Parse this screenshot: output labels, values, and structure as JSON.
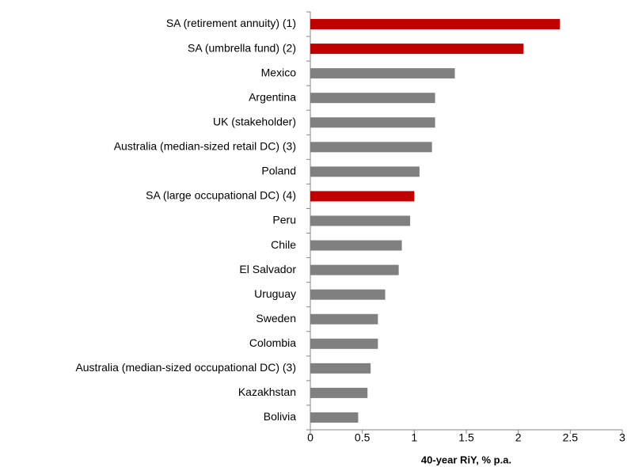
{
  "chart_data": {
    "type": "bar",
    "orientation": "horizontal",
    "categories": [
      "SA (retirement annuity) (1)",
      "SA (umbrella fund) (2)",
      "Mexico",
      "Argentina",
      "UK (stakeholder)",
      "Australia (median-sized retail DC) (3)",
      "Poland",
      "SA (large occupational DC) (4)",
      "Peru",
      "Chile",
      "El Salvador",
      "Uruguay",
      "Sweden",
      "Colombia",
      "Australia (median-sized occupational DC) (3)",
      "Kazakhstan",
      "Bolivia"
    ],
    "values": [
      2.4,
      2.05,
      1.39,
      1.2,
      1.2,
      1.17,
      1.05,
      1.0,
      0.96,
      0.88,
      0.85,
      0.72,
      0.65,
      0.65,
      0.58,
      0.55,
      0.46
    ],
    "colors": [
      "#c00000",
      "#c00000",
      "#808080",
      "#808080",
      "#808080",
      "#808080",
      "#808080",
      "#c00000",
      "#808080",
      "#808080",
      "#808080",
      "#808080",
      "#808080",
      "#808080",
      "#808080",
      "#808080",
      "#808080"
    ],
    "xlabel": "40-year RiY, % p.a.",
    "xlim": [
      0,
      3
    ],
    "xticks": [
      0,
      0.5,
      1,
      1.5,
      2,
      2.5,
      3
    ],
    "grid": false
  }
}
